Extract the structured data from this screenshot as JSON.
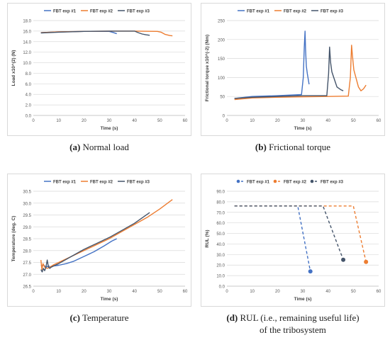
{
  "chart_data": [
    {
      "id": "a",
      "type": "line",
      "caption_letter": "(a)",
      "caption_text": "Normal load",
      "ylabel": "Load x10^(2) (N)",
      "xlabel": "Time (s)",
      "xlim": [
        0,
        60
      ],
      "xticks": [
        0,
        10,
        20,
        30,
        40,
        50,
        60
      ],
      "ylim": [
        0,
        18
      ],
      "yticks": [
        0.0,
        2.0,
        4.0,
        6.0,
        8.0,
        10.0,
        12.0,
        14.0,
        16.0,
        18.0
      ],
      "ydec": 1,
      "grid": true,
      "legend": "top",
      "series": [
        {
          "name": "FBT exp #1",
          "color": "#4472c4",
          "x": [
            3,
            10,
            20,
            30,
            31.5,
            33
          ],
          "y": [
            15.7,
            15.85,
            15.95,
            15.95,
            15.75,
            15.5
          ]
        },
        {
          "name": "FBT exp #2",
          "color": "#ed7d31",
          "x": [
            3,
            10,
            20,
            30,
            40,
            49,
            50.5,
            52,
            54,
            55
          ],
          "y": [
            15.7,
            15.85,
            15.95,
            16.0,
            16.0,
            15.95,
            15.8,
            15.4,
            15.15,
            15.1
          ]
        },
        {
          "name": "FBT exp #3",
          "color": "#44546a",
          "x": [
            3,
            10,
            20,
            30,
            40,
            41.5,
            43,
            44.5,
            46
          ],
          "y": [
            15.65,
            15.8,
            15.95,
            16.0,
            16.0,
            15.7,
            15.45,
            15.3,
            15.2
          ]
        }
      ]
    },
    {
      "id": "b",
      "type": "line",
      "caption_letter": "(b)",
      "caption_text": "Frictional torque",
      "ylabel": "Frictional torque x10^(-2) (Nm)",
      "xlabel": "Time (s)",
      "xlim": [
        0,
        60
      ],
      "xticks": [
        0,
        10,
        20,
        30,
        40,
        50,
        60
      ],
      "ylim": [
        0,
        250
      ],
      "yticks": [
        0,
        50,
        100,
        150,
        200,
        250
      ],
      "ydec": 0,
      "grid": true,
      "legend": "top",
      "series": [
        {
          "name": "FBT exp #1",
          "color": "#4472c4",
          "x": [
            3,
            10,
            20,
            29.5,
            30.2,
            30.6,
            30.9,
            31.1,
            31.4,
            31.8,
            32.5
          ],
          "y": [
            45,
            50,
            52,
            55,
            100,
            180,
            222,
            175,
            130,
            110,
            82
          ]
        },
        {
          "name": "FBT exp #2",
          "color": "#ed7d31",
          "x": [
            3,
            10,
            20,
            30,
            40,
            48,
            48.8,
            49.3,
            49.6,
            50.2,
            51,
            52,
            53,
            54,
            55
          ],
          "y": [
            42,
            46,
            48,
            49,
            50,
            51,
            100,
            185,
            160,
            120,
            100,
            75,
            65,
            70,
            80
          ]
        },
        {
          "name": "FBT exp #3",
          "color": "#44546a",
          "x": [
            3,
            10,
            20,
            30,
            39.5,
            40.2,
            40.6,
            41,
            41.5,
            42.5,
            43.5,
            45,
            46
          ],
          "y": [
            45,
            48,
            50,
            52,
            52,
            110,
            180,
            140,
            115,
            95,
            75,
            68,
            65
          ]
        }
      ]
    },
    {
      "id": "c",
      "type": "line",
      "caption_letter": "(c)",
      "caption_text": "Temperature",
      "ylabel": "Temperature (deg. C)",
      "xlabel": "Time (s)",
      "xlim": [
        0,
        60
      ],
      "xticks": [
        0,
        10,
        20,
        30,
        40,
        50,
        60
      ],
      "ylim": [
        26.5,
        30.5
      ],
      "yticks": [
        26.5,
        27.0,
        27.5,
        28.0,
        28.5,
        29.0,
        29.5,
        30.0,
        30.5
      ],
      "ydec": 1,
      "grid": true,
      "legend": "top",
      "series": [
        {
          "name": "FBT exp #1",
          "color": "#4472c4",
          "x": [
            3,
            4,
            5,
            6,
            7,
            8,
            10,
            13,
            16,
            20,
            24,
            28,
            31,
            33
          ],
          "y": [
            27.35,
            27.4,
            27.3,
            27.35,
            27.3,
            27.35,
            27.38,
            27.45,
            27.55,
            27.75,
            27.95,
            28.2,
            28.4,
            28.5
          ]
        },
        {
          "name": "FBT exp #2",
          "color": "#ed7d31",
          "x": [
            3,
            3.4,
            3.8,
            4.5,
            5.5,
            6.5,
            8,
            10,
            15,
            20,
            25,
            30,
            35,
            40,
            45,
            50,
            55
          ],
          "y": [
            27.6,
            27.2,
            27.45,
            27.3,
            27.25,
            27.3,
            27.4,
            27.5,
            27.75,
            28.0,
            28.25,
            28.5,
            28.8,
            29.1,
            29.4,
            29.75,
            30.15
          ]
        },
        {
          "name": "FBT exp #3",
          "color": "#44546a",
          "x": [
            3,
            3.5,
            4,
            4.5,
            5,
            5.5,
            6,
            6.5,
            7,
            8,
            10,
            15,
            20,
            25,
            30,
            35,
            40,
            46
          ],
          "y": [
            27.2,
            27.1,
            27.25,
            27.15,
            27.3,
            27.6,
            27.3,
            27.25,
            27.3,
            27.35,
            27.45,
            27.75,
            28.05,
            28.3,
            28.55,
            28.85,
            29.15,
            29.6
          ]
        }
      ]
    },
    {
      "id": "d",
      "type": "line",
      "caption_letter": "(d)",
      "caption_text": "RUL (i.e., remaining useful life)",
      "caption_text2": "of the tribosystem",
      "ylabel": "RUL (%)",
      "xlabel": "Time (s)",
      "xlim": [
        0,
        60
      ],
      "xticks": [
        0,
        10,
        20,
        30,
        40,
        50,
        60
      ],
      "ylim": [
        0,
        90
      ],
      "yticks": [
        0.0,
        10.0,
        20.0,
        30.0,
        40.0,
        50.0,
        60.0,
        70.0,
        80.0,
        90.0
      ],
      "ydec": 1,
      "grid": true,
      "legend": "top",
      "dashed": true,
      "series": [
        {
          "name": "FBT exp #1",
          "color": "#4472c4",
          "x": [
            3,
            28,
            33
          ],
          "y": [
            76,
            76,
            14
          ],
          "end_marker": true
        },
        {
          "name": "FBT exp #2",
          "color": "#ed7d31",
          "x": [
            3,
            50,
            55
          ],
          "y": [
            76,
            76,
            23
          ],
          "end_marker": true
        },
        {
          "name": "FBT exp #3",
          "color": "#44546a",
          "x": [
            3,
            38,
            46
          ],
          "y": [
            76,
            76,
            25
          ],
          "end_marker": true
        }
      ]
    }
  ]
}
